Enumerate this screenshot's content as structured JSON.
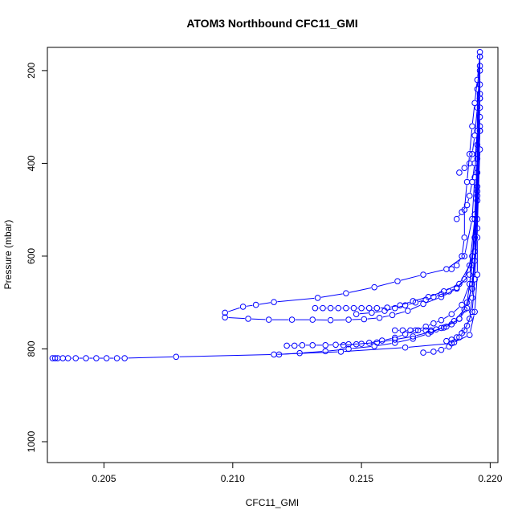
{
  "chart_data": {
    "type": "line",
    "title": "ATOM3 Northbound CFC11_GMI",
    "xlabel": "CFC11_GMI",
    "ylabel": "Pressure (mbar)",
    "xlim": [
      0.2028,
      0.2203
    ],
    "ylim": [
      1045,
      150
    ],
    "y_inverted": true,
    "grid": false,
    "marker": "open-circle",
    "line_color": "#0000ff",
    "xticks": [
      0.205,
      0.21,
      0.215,
      0.22
    ],
    "xtick_labels": [
      "0.205",
      "0.210",
      "0.215",
      "0.220"
    ],
    "yticks": [
      200,
      400,
      600,
      800,
      1000
    ],
    "ytick_labels": [
      "200",
      "400",
      "600",
      "800",
      "1000"
    ],
    "series": [
      {
        "x": [
          0.203,
          0.2031,
          0.2032,
          0.2034,
          0.2036,
          0.2039,
          0.2043,
          0.2047,
          0.2051,
          0.2055,
          0.2058,
          0.2078,
          0.2116,
          0.2142,
          0.2167,
          0.2185,
          0.2192,
          0.2194,
          0.2195,
          0.2195,
          0.2195,
          0.2195,
          0.2196,
          0.2196
        ],
        "y": [
          820,
          820,
          820,
          820,
          820,
          820,
          820,
          820,
          820,
          820,
          820,
          817,
          812,
          806,
          797,
          788,
          770,
          720,
          640,
          560,
          460,
          360,
          260,
          160
        ]
      },
      {
        "x": [
          0.2097,
          0.2104,
          0.2109,
          0.2116,
          0.2133,
          0.2144,
          0.2155,
          0.2164,
          0.2174,
          0.2183,
          0.219,
          0.2193,
          0.2194,
          0.2195,
          0.2195,
          0.2196
        ],
        "y": [
          722,
          709,
          705,
          699,
          690,
          680,
          667,
          654,
          640,
          628,
          600,
          520,
          430,
          330,
          240,
          170
        ]
      },
      {
        "x": [
          0.2097,
          0.2106,
          0.2114,
          0.2123,
          0.2131,
          0.2138,
          0.2145,
          0.2151,
          0.2157,
          0.2162,
          0.2168,
          0.2174,
          0.2181,
          0.2187,
          0.2192,
          0.2194,
          0.2195,
          0.2195,
          0.2196
        ],
        "y": [
          732,
          735,
          737,
          737,
          737,
          738,
          737,
          736,
          733,
          727,
          718,
          703,
          688,
          670,
          640,
          560,
          450,
          330,
          200
        ]
      },
      {
        "x": [
          0.2132,
          0.2135,
          0.2138,
          0.2141,
          0.2144,
          0.2147,
          0.215,
          0.2153,
          0.2156,
          0.216,
          0.2165,
          0.217,
          0.2176,
          0.2182,
          0.2188,
          0.2192,
          0.2194,
          0.2195,
          0.2196
        ],
        "y": [
          712,
          712,
          712,
          712,
          712,
          712,
          712,
          712,
          712,
          711,
          706,
          697,
          688,
          676,
          660,
          620,
          520,
          380,
          250
        ]
      },
      {
        "x": [
          0.2121,
          0.2124,
          0.2127,
          0.2131,
          0.2136,
          0.214,
          0.2145,
          0.215,
          0.2156,
          0.2163,
          0.217,
          0.2177,
          0.2183,
          0.2188,
          0.2191,
          0.2193,
          0.2194,
          0.2195,
          0.2196
        ],
        "y": [
          793,
          793,
          792,
          792,
          792,
          791,
          790,
          789,
          786,
          780,
          773,
          763,
          752,
          735,
          700,
          620,
          510,
          390,
          260
        ]
      },
      {
        "x": [
          0.2118,
          0.2126,
          0.2136,
          0.2145,
          0.2155,
          0.2163,
          0.217,
          0.2176,
          0.2181,
          0.2186,
          0.219,
          0.2193,
          0.2194,
          0.2195,
          0.2196
        ],
        "y": [
          812,
          809,
          805,
          800,
          794,
          787,
          778,
          767,
          755,
          740,
          715,
          670,
          590,
          470,
          330
        ]
      },
      {
        "x": [
          0.2143,
          0.2148,
          0.2153,
          0.2158,
          0.2163,
          0.2167,
          0.2171,
          0.2175,
          0.2178,
          0.2181,
          0.2185,
          0.2189,
          0.2192,
          0.2194,
          0.2195,
          0.2196
        ],
        "y": [
          792,
          790,
          787,
          782,
          776,
          768,
          760,
          752,
          745,
          738,
          725,
          705,
          660,
          560,
          420,
          280
        ]
      },
      {
        "x": [
          0.2148,
          0.2154,
          0.2159,
          0.2163,
          0.2167,
          0.2171,
          0.2175,
          0.2178,
          0.2181,
          0.2184,
          0.2187,
          0.219,
          0.2193,
          0.2195,
          0.2196
        ],
        "y": [
          725,
          722,
          718,
          712,
          706,
          700,
          694,
          688,
          682,
          676,
          668,
          650,
          600,
          480,
          320
        ]
      },
      {
        "x": [
          0.2163,
          0.2166,
          0.2169,
          0.2172,
          0.2175,
          0.2177,
          0.2179,
          0.2182,
          0.2185,
          0.2188,
          0.2191,
          0.2193,
          0.2195,
          0.2196
        ],
        "y": [
          760,
          760,
          760,
          760,
          760,
          760,
          758,
          754,
          747,
          735,
          712,
          660,
          540,
          370
        ]
      },
      {
        "x": [
          0.2174,
          0.2178,
          0.2181,
          0.2184,
          0.2186,
          0.2188,
          0.219,
          0.2192,
          0.2193,
          0.2194,
          0.2195,
          0.2196
        ],
        "y": [
          808,
          806,
          802,
          795,
          786,
          775,
          760,
          735,
          690,
          610,
          480,
          300
        ]
      },
      {
        "x": [
          0.2183,
          0.2185,
          0.2187,
          0.2189,
          0.2191,
          0.2193,
          0.2194,
          0.2195,
          0.2196
        ],
        "y": [
          783,
          780,
          775,
          766,
          750,
          720,
          650,
          520,
          330
        ]
      },
      {
        "x": [
          0.2185,
          0.2187,
          0.2189,
          0.219,
          0.219,
          0.2191,
          0.2192,
          0.2193,
          0.2194,
          0.2195,
          0.2196
        ],
        "y": [
          628,
          620,
          600,
          560,
          500,
          440,
          380,
          320,
          270,
          220,
          170
        ]
      },
      {
        "x": [
          0.2188,
          0.219,
          0.2192,
          0.2193,
          0.2194,
          0.2195,
          0.2196
        ],
        "y": [
          420,
          410,
          400,
          380,
          340,
          280,
          190
        ]
      },
      {
        "x": [
          0.2187,
          0.2189,
          0.2191,
          0.2192,
          0.2193,
          0.2194,
          0.2195,
          0.2196
        ],
        "y": [
          520,
          505,
          490,
          470,
          440,
          400,
          330,
          230
        ]
      }
    ]
  }
}
